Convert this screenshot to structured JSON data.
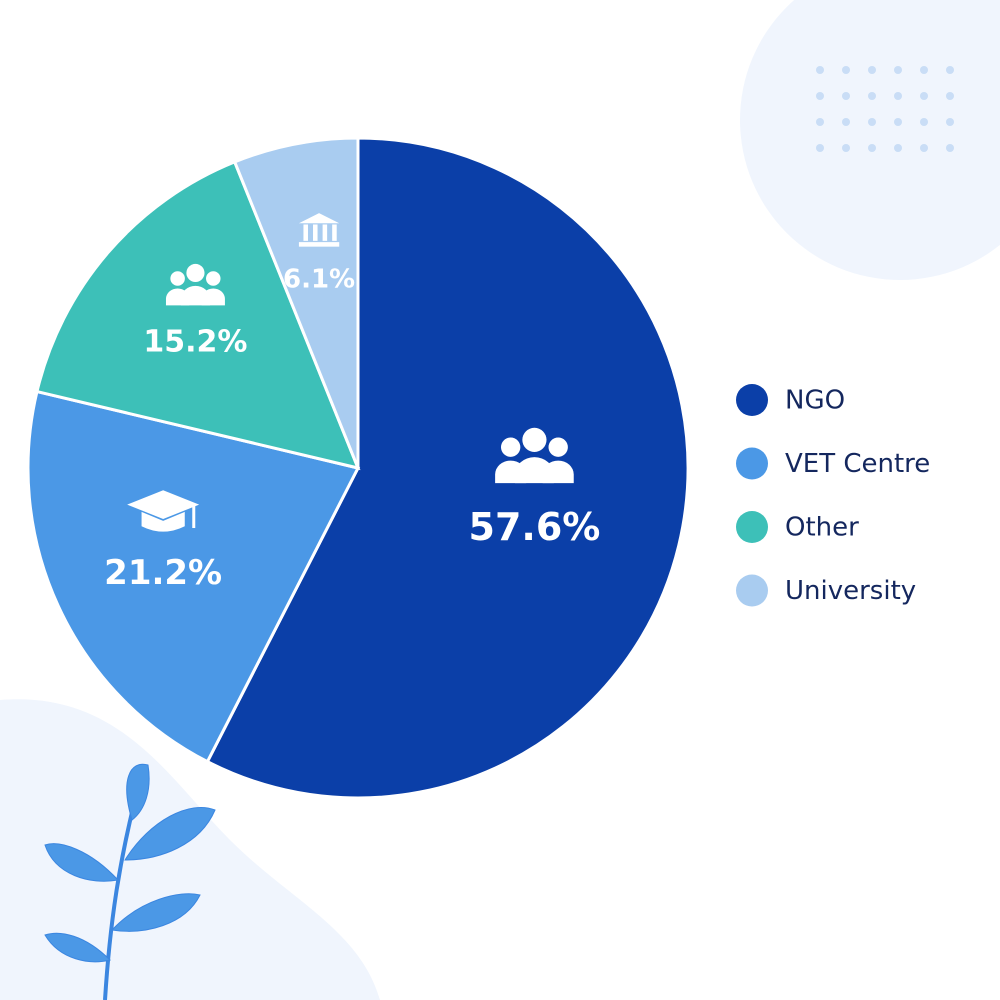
{
  "chart_data": {
    "type": "pie",
    "categories": [
      "NGO",
      "VET Centre",
      "Other",
      "University"
    ],
    "values": [
      57.6,
      21.2,
      15.2,
      6.1
    ],
    "value_labels": [
      "57.6%",
      "21.2%",
      "15.2%",
      "6.1%"
    ],
    "colors": [
      "#0b3fa8",
      "#4b98e6",
      "#3dc0b8",
      "#a9ccf0"
    ],
    "legend": "right"
  }
}
